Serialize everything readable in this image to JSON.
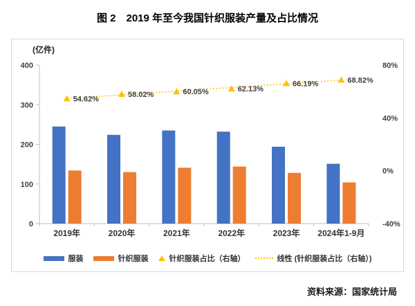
{
  "chart_data": {
    "type": "bar",
    "title": "图 2　2019 年至今我国针织服装产量及占比情况",
    "source": "资料来源：国家统计局",
    "categories": [
      "2019年",
      "2020年",
      "2021年",
      "2022年",
      "2023年",
      "2024年1-9月"
    ],
    "series": [
      {
        "name": "服装",
        "type": "bar",
        "axis": "left",
        "color": "#4472C4",
        "values": [
          245,
          224,
          235,
          232,
          194,
          151
        ]
      },
      {
        "name": "针织服装",
        "type": "bar",
        "axis": "left",
        "color": "#ED7D31",
        "values": [
          134,
          130,
          141,
          144,
          128,
          104
        ]
      },
      {
        "name": "针织服装占比（右轴）",
        "type": "scatter-triangle",
        "axis": "right",
        "color": "#FFC000",
        "values": [
          54.62,
          58.02,
          60.05,
          62.13,
          66.19,
          68.82
        ],
        "labels": [
          "54.62%",
          "58.02%",
          "60.05%",
          "62.13%",
          "66.19%",
          "68.82%"
        ]
      },
      {
        "name": "线性 (针织服装占比（右轴）)",
        "type": "linear-trend",
        "axis": "right",
        "color": "#FFC000"
      }
    ],
    "left_axis": {
      "unit": "(亿件)",
      "ticks": [
        0,
        100,
        200,
        300,
        400
      ],
      "range": [
        0,
        400
      ]
    },
    "right_axis": {
      "ticks": [
        "-40%",
        "0%",
        "40%",
        "80%"
      ],
      "range": [
        -40,
        80
      ]
    },
    "layout": {
      "grid": false,
      "legend_position": "bottom"
    },
    "colors": {
      "bar_blue": "#4472C4",
      "bar_orange": "#ED7D31",
      "marker_gold": "#FFC000",
      "border": "#D9D9D9",
      "axis": "#BFBFBF",
      "text": "#404040"
    }
  }
}
